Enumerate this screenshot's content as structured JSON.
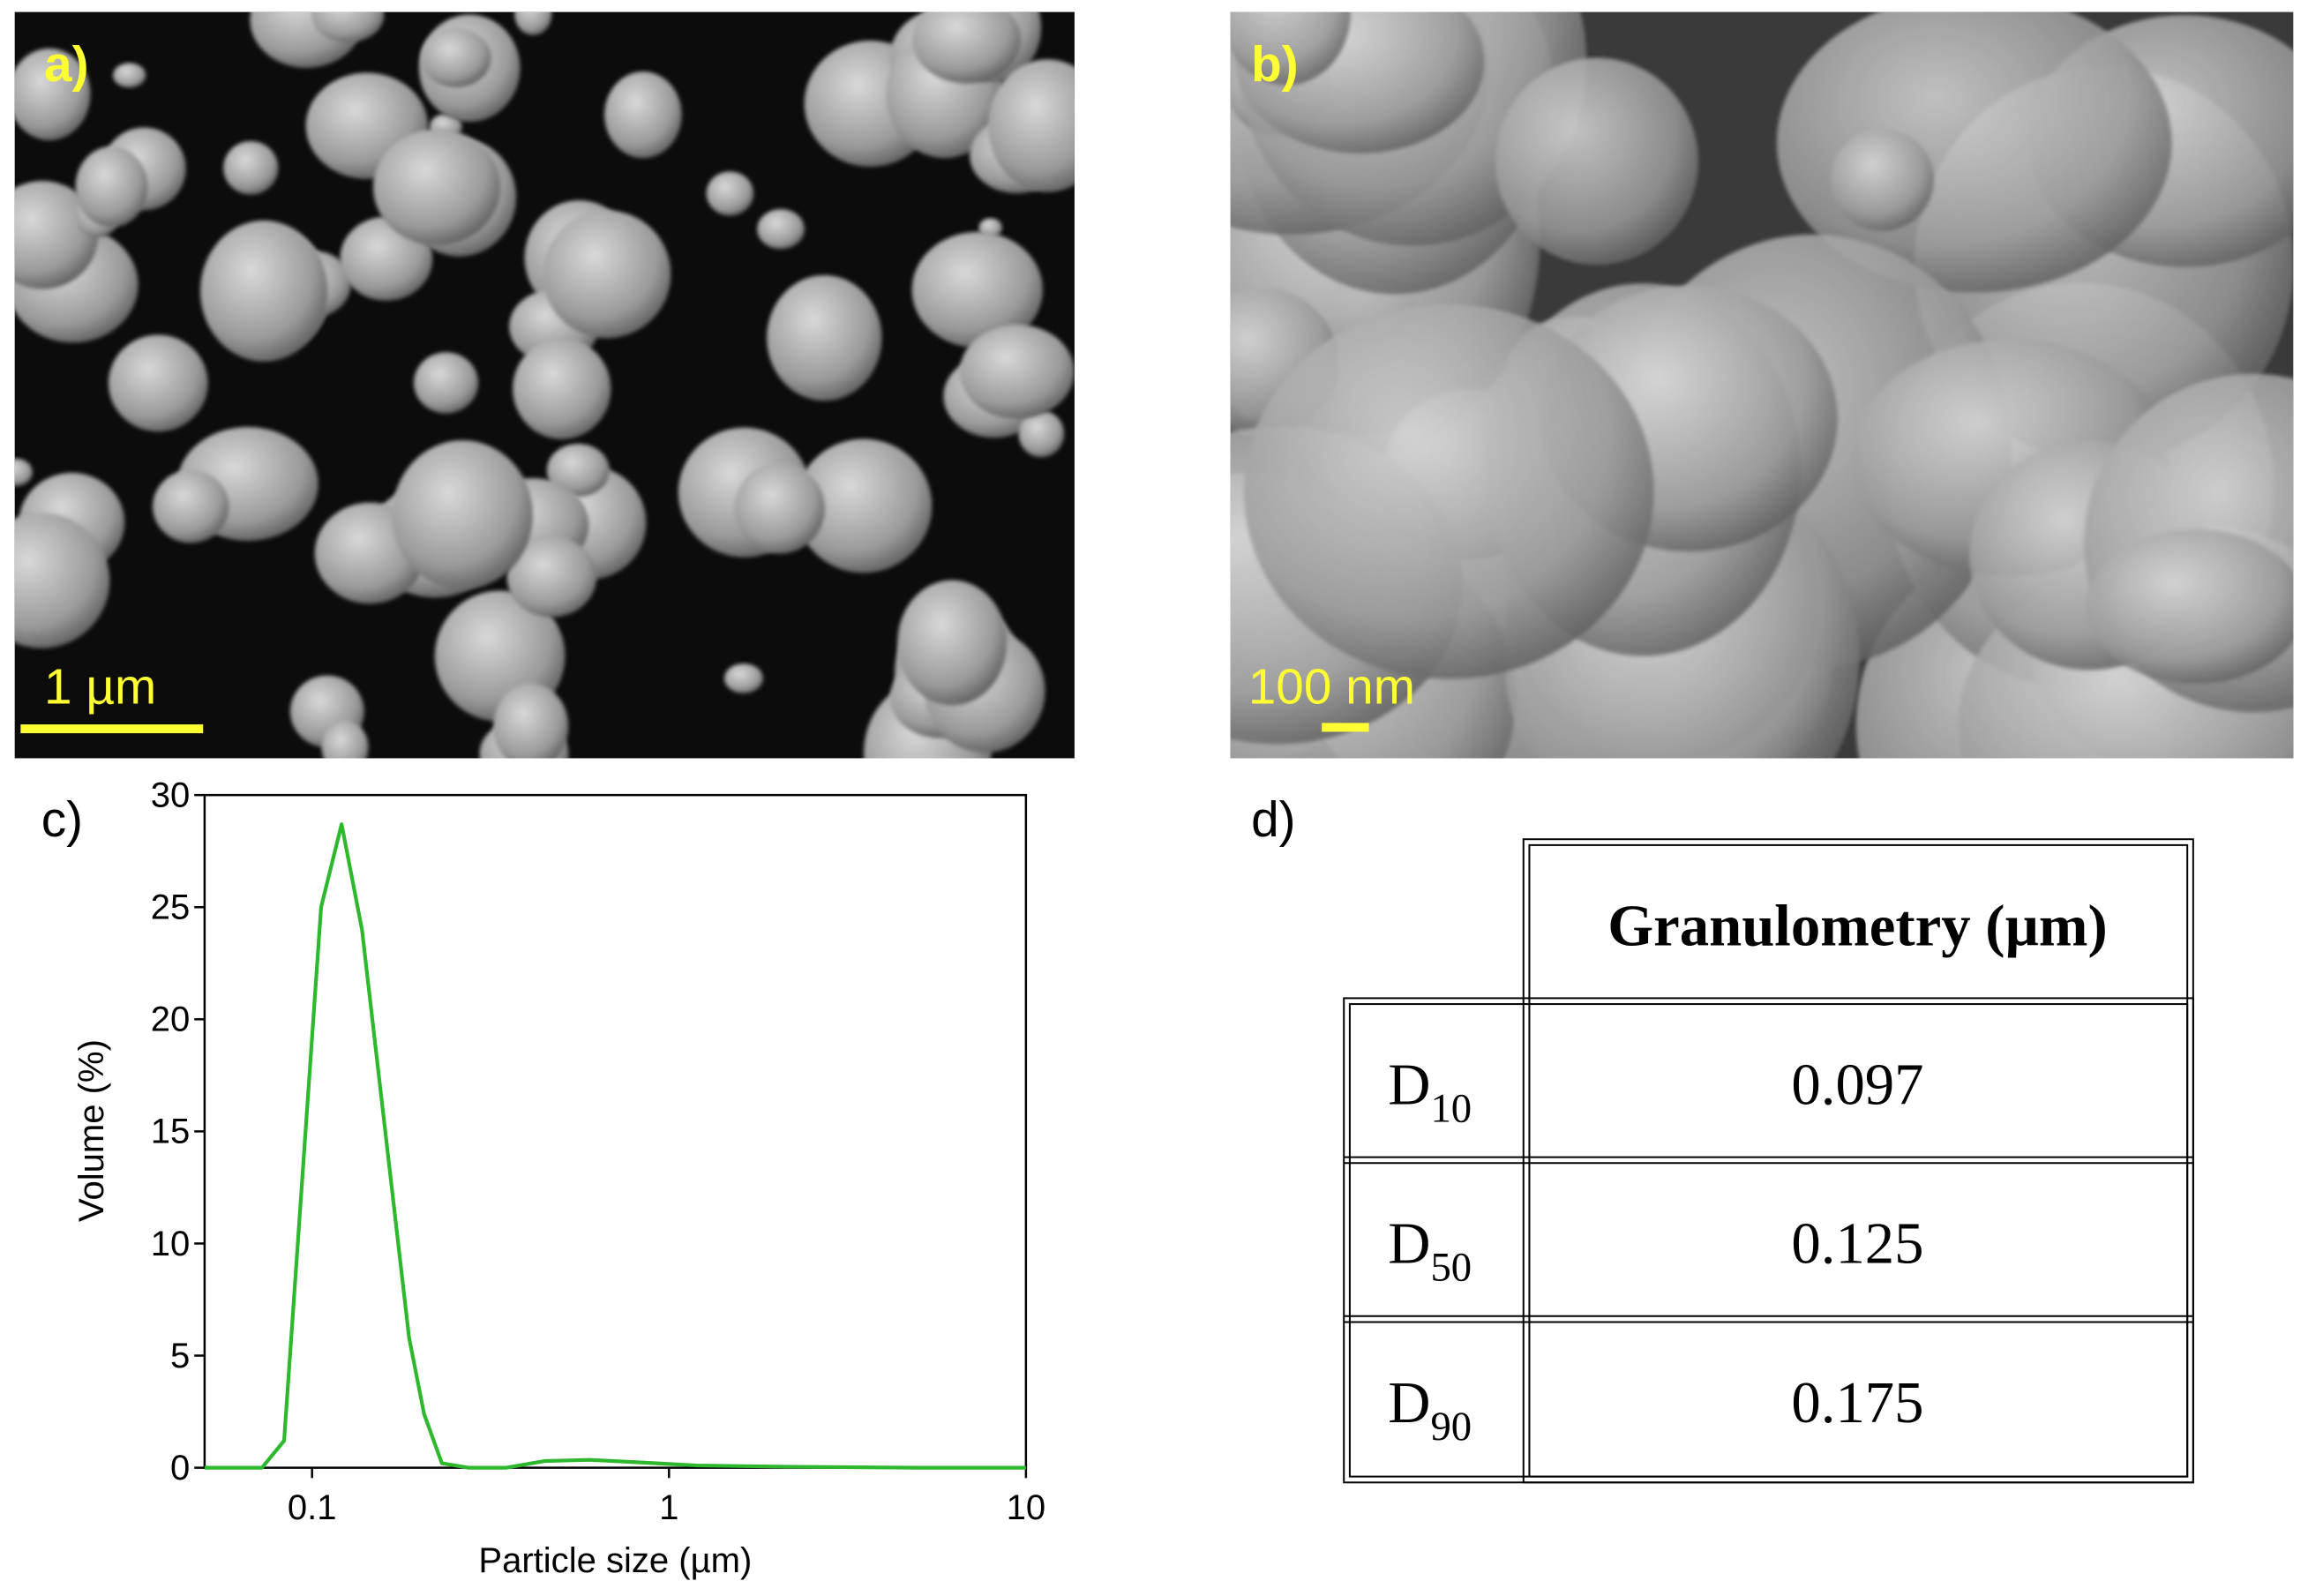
{
  "panels": {
    "a": {
      "label": "a)",
      "scale_bar": "1 µm"
    },
    "b": {
      "label": "b)",
      "scale_bar": "100 nm"
    },
    "c": {
      "label": "c)"
    },
    "d": {
      "label": "d)"
    }
  },
  "chart_data": {
    "type": "line",
    "x_label": "Particle size (µm)",
    "y_label": "Volume (%)",
    "x": [
      0.05,
      0.0724,
      0.0835,
      0.106,
      0.121,
      0.138,
      0.187,
      0.206,
      0.231,
      0.274,
      0.35,
      0.45,
      0.6,
      0.8,
      1.2,
      2,
      5,
      10
    ],
    "series": [
      {
        "color": "#2db82d",
        "values": [
          0,
          0,
          1.2,
          25,
          28.7,
          24,
          5.8,
          2.4,
          0.2,
          0,
          0,
          0.3,
          0.35,
          0.25,
          0.1,
          0.05,
          0,
          0
        ]
      }
    ],
    "xlim": [
      0.05,
      10
    ],
    "ylim": [
      0,
      30
    ],
    "xticks": [
      0.1,
      1,
      10
    ],
    "yticks": [
      0,
      5,
      10,
      15,
      20,
      25,
      30
    ],
    "x_scale": "log",
    "grid": false
  },
  "table": {
    "header": "Granulometry (µm)",
    "rows": [
      {
        "label": "D",
        "subscript": "10",
        "value": "0.097"
      },
      {
        "label": "D",
        "subscript": "50",
        "value": "0.125"
      },
      {
        "label": "D",
        "subscript": "90",
        "value": "0.175"
      }
    ]
  }
}
